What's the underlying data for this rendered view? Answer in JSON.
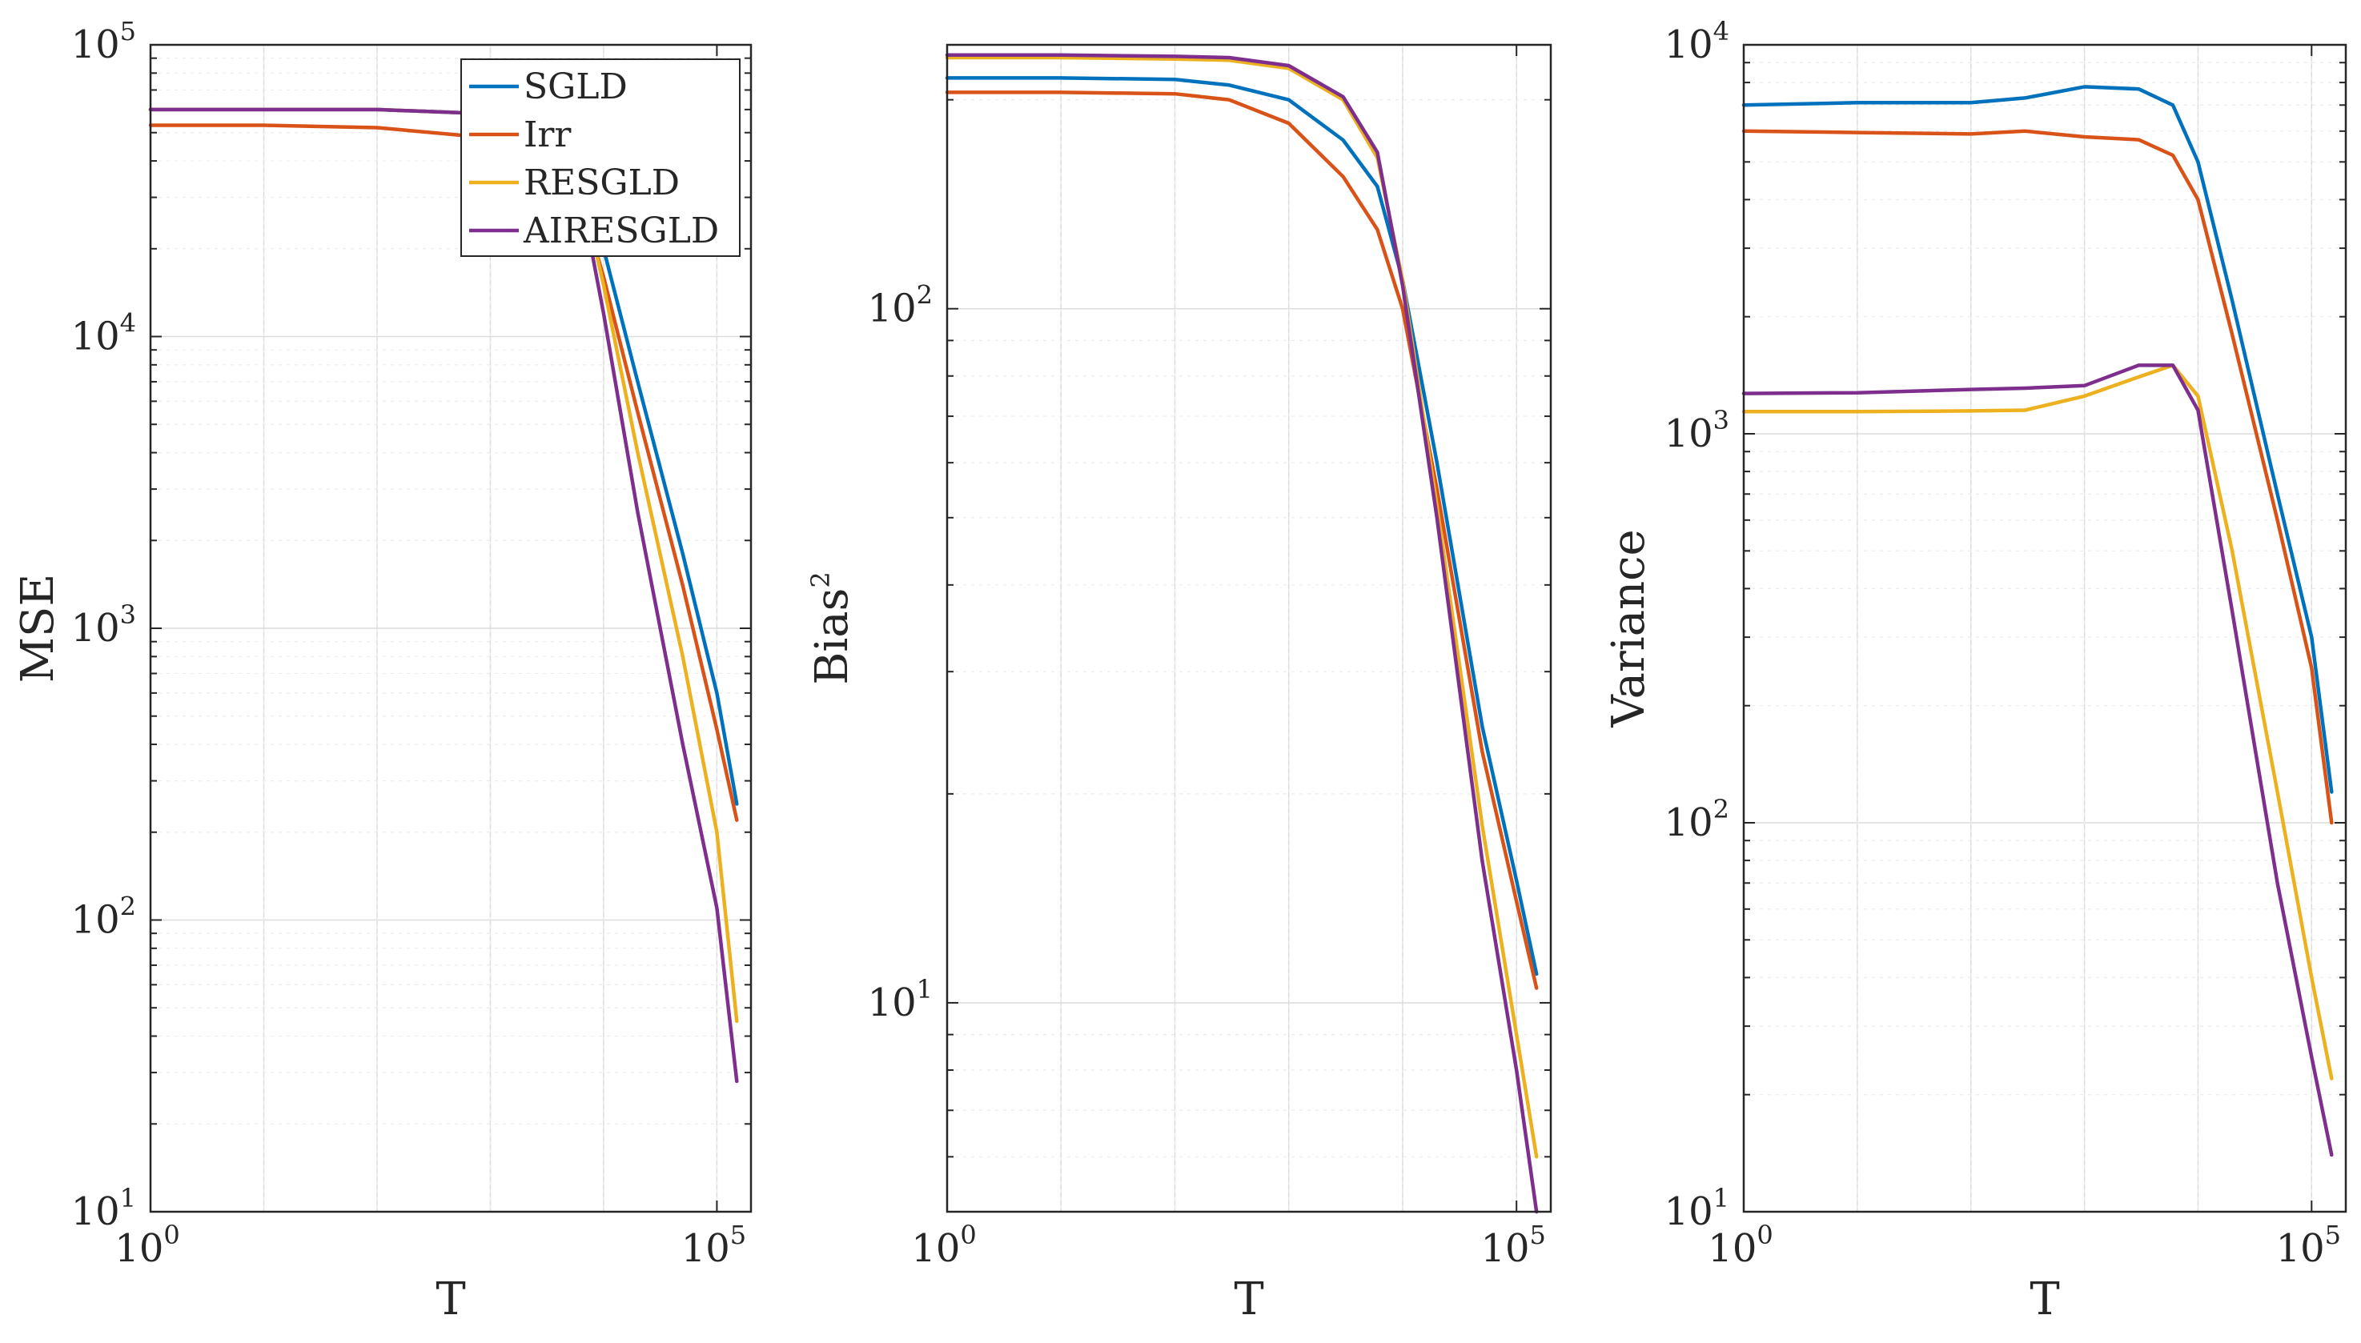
{
  "chart_data": [
    {
      "type": "line",
      "title": "",
      "xlabel": "T",
      "ylabel": "MSE",
      "xscale": "log",
      "yscale": "log",
      "xlim": [
        1,
        200000
      ],
      "ylim": [
        10,
        100000
      ],
      "grid": true,
      "x_ticks": [
        {
          "base": "10",
          "exp": "0",
          "value": 1
        },
        {
          "base": "10",
          "exp": "5",
          "value": 100000
        }
      ],
      "y_ticks": [
        {
          "base": "10",
          "exp": "1",
          "value": 10
        },
        {
          "base": "10",
          "exp": "2",
          "value": 100
        },
        {
          "base": "10",
          "exp": "3",
          "value": 1000
        },
        {
          "base": "10",
          "exp": "4",
          "value": 10000
        },
        {
          "base": "10",
          "exp": "5",
          "value": 100000
        }
      ],
      "legend": {
        "location": "top-right",
        "entries": [
          "SGLD",
          "Irr",
          "RESGLD",
          "AIRESGLD"
        ]
      },
      "series": [
        {
          "name": "SGLD",
          "color": "#0072BD",
          "x": [
            1,
            10,
            100,
            1000,
            3000,
            6000,
            10000,
            20000,
            50000,
            100000,
            150000
          ],
          "y": [
            60000,
            60000,
            60000,
            58000,
            52000,
            38000,
            20000,
            7000,
            1800,
            600,
            250
          ]
        },
        {
          "name": "Irr",
          "color": "#D95319",
          "x": [
            1,
            10,
            100,
            1000,
            3000,
            6000,
            10000,
            20000,
            50000,
            100000,
            150000
          ],
          "y": [
            53000,
            53000,
            52000,
            48000,
            42000,
            32000,
            16000,
            5500,
            1400,
            450,
            220
          ]
        },
        {
          "name": "RESGLD",
          "color": "#EDB120",
          "x": [
            1,
            10,
            100,
            1000,
            3000,
            6000,
            10000,
            20000,
            50000,
            100000,
            150000
          ],
          "y": [
            60000,
            60000,
            60000,
            58000,
            52000,
            36000,
            15000,
            4000,
            800,
            200,
            45
          ]
        },
        {
          "name": "AIRESGLD",
          "color": "#7E2F8E",
          "x": [
            1,
            10,
            100,
            1000,
            3000,
            6000,
            10000,
            20000,
            50000,
            100000,
            150000
          ],
          "y": [
            60000,
            60000,
            60000,
            58000,
            52000,
            34000,
            12000,
            2500,
            400,
            110,
            28
          ]
        }
      ]
    },
    {
      "type": "line",
      "title": "",
      "xlabel": "T",
      "ylabel": "Bias",
      "ylabel_superscript": "2",
      "xscale": "log",
      "yscale": "log",
      "xlim": [
        1,
        200000
      ],
      "ylim": [
        5,
        240
      ],
      "grid": true,
      "x_ticks": [
        {
          "base": "10",
          "exp": "0",
          "value": 1
        },
        {
          "base": "10",
          "exp": "5",
          "value": 100000
        }
      ],
      "y_ticks": [
        {
          "base": "10",
          "exp": "1",
          "value": 10
        },
        {
          "base": "10",
          "exp": "2",
          "value": 100
        }
      ],
      "series": [
        {
          "name": "SGLD",
          "color": "#0072BD",
          "x": [
            1,
            10,
            100,
            300,
            1000,
            3000,
            6000,
            10000,
            20000,
            50000,
            100000,
            150000
          ],
          "y": [
            215,
            215,
            214,
            210,
            200,
            175,
            150,
            110,
            60,
            25,
            15,
            11
          ]
        },
        {
          "name": "Irr",
          "color": "#D95319",
          "x": [
            1,
            10,
            100,
            300,
            1000,
            3000,
            6000,
            10000,
            20000,
            50000,
            100000,
            150000
          ],
          "y": [
            205,
            205,
            204,
            200,
            185,
            155,
            130,
            100,
            55,
            23,
            14,
            10.5
          ]
        },
        {
          "name": "RESGLD",
          "color": "#EDB120",
          "x": [
            1,
            10,
            100,
            300,
            1000,
            3000,
            6000,
            10000,
            20000,
            50000,
            100000,
            150000
          ],
          "y": [
            230,
            230,
            229,
            228,
            222,
            200,
            165,
            110,
            52,
            18,
            9,
            6
          ]
        },
        {
          "name": "AIRESGLD",
          "color": "#7E2F8E",
          "x": [
            1,
            10,
            100,
            300,
            1000,
            3000,
            6000,
            10000,
            20000,
            50000,
            100000,
            150000
          ],
          "y": [
            232,
            232,
            231,
            230,
            224,
            202,
            168,
            108,
            50,
            16,
            8,
            5
          ]
        }
      ]
    },
    {
      "type": "line",
      "title": "",
      "xlabel": "T",
      "ylabel": "Variance",
      "xscale": "log",
      "yscale": "log",
      "xlim": [
        1,
        200000
      ],
      "ylim": [
        10,
        10000
      ],
      "grid": true,
      "x_ticks": [
        {
          "base": "10",
          "exp": "0",
          "value": 1
        },
        {
          "base": "10",
          "exp": "5",
          "value": 100000
        }
      ],
      "y_ticks": [
        {
          "base": "10",
          "exp": "1",
          "value": 10
        },
        {
          "base": "10",
          "exp": "2",
          "value": 100
        },
        {
          "base": "10",
          "exp": "3",
          "value": 1000
        },
        {
          "base": "10",
          "exp": "4",
          "value": 10000
        }
      ],
      "series": [
        {
          "name": "SGLD",
          "color": "#0072BD",
          "x": [
            1,
            10,
            100,
            300,
            1000,
            3000,
            6000,
            10000,
            20000,
            50000,
            100000,
            150000
          ],
          "y": [
            7000,
            7100,
            7100,
            7300,
            7800,
            7700,
            7000,
            5000,
            2200,
            700,
            300,
            120
          ]
        },
        {
          "name": "Irr",
          "color": "#D95319",
          "x": [
            1,
            10,
            100,
            300,
            1000,
            3000,
            6000,
            10000,
            20000,
            50000,
            100000,
            150000
          ],
          "y": [
            6000,
            5950,
            5900,
            6000,
            5800,
            5700,
            5200,
            4000,
            1800,
            600,
            250,
            100
          ]
        },
        {
          "name": "RESGLD",
          "color": "#EDB120",
          "x": [
            1,
            10,
            100,
            300,
            1000,
            3000,
            6000,
            10000,
            20000,
            50000,
            100000,
            150000
          ],
          "y": [
            1140,
            1140,
            1145,
            1150,
            1250,
            1400,
            1500,
            1250,
            500,
            120,
            40,
            22
          ]
        },
        {
          "name": "AIRESGLD",
          "color": "#7E2F8E",
          "x": [
            1,
            10,
            100,
            300,
            1000,
            3000,
            6000,
            10000,
            20000,
            50000,
            100000,
            150000
          ],
          "y": [
            1270,
            1275,
            1300,
            1310,
            1330,
            1500,
            1500,
            1150,
            350,
            70,
            25,
            14
          ]
        }
      ]
    }
  ]
}
